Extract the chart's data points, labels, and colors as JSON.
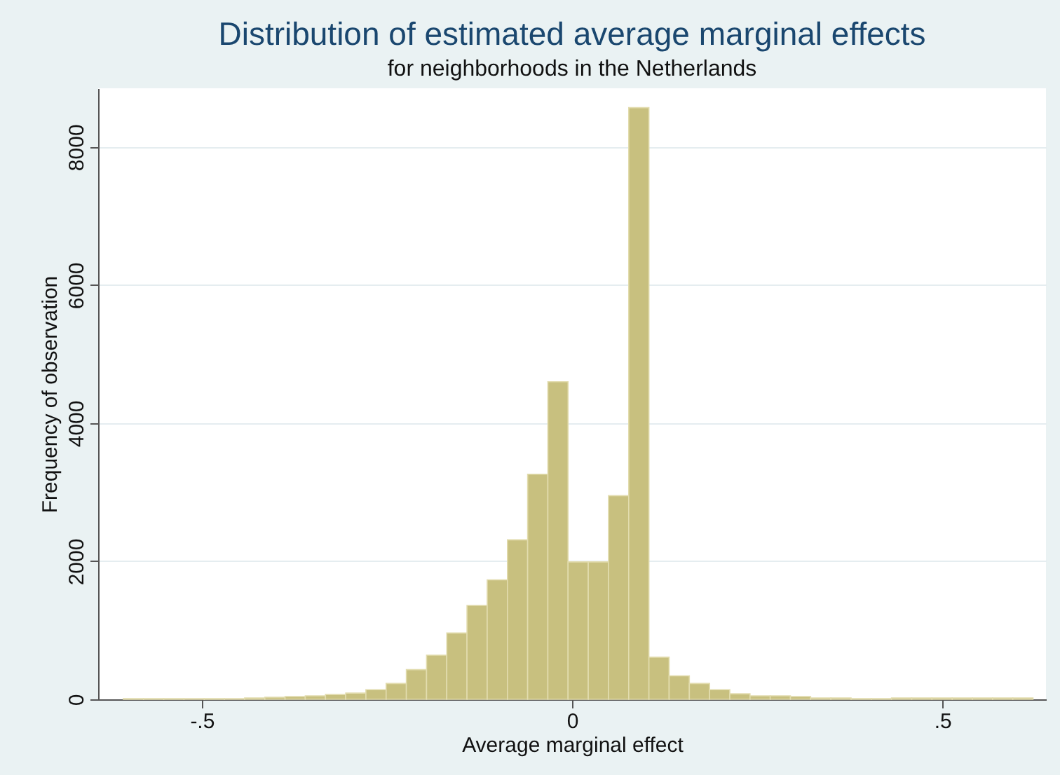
{
  "chart_data": {
    "type": "histogram",
    "title": "Distribution of estimated average marginal effects",
    "subtitle": "for neighborhoods in the Netherlands",
    "xlabel": "Average marginal effect",
    "ylabel": "Frequency of observation",
    "bins": [
      -0.606,
      -0.5787,
      -0.5514,
      -0.5241,
      -0.4968,
      -0.4695,
      -0.4422,
      -0.4149,
      -0.3876,
      -0.3603,
      -0.333,
      -0.3057,
      -0.2784,
      -0.2511,
      -0.2238,
      -0.1965,
      -0.1692,
      -0.1419,
      -0.1146,
      -0.0873,
      -0.06,
      -0.0327,
      -0.0054,
      0.0219,
      0.0492,
      0.0765,
      0.1038,
      0.1311,
      0.1584,
      0.1857,
      0.213,
      0.2403,
      0.2676,
      0.2949,
      0.3222,
      0.3495,
      0.3768,
      0.4041,
      0.4314,
      0.4587,
      0.486,
      0.5133,
      0.5406,
      0.5679,
      0.5952,
      0.6225
    ],
    "values": [
      10,
      10,
      10,
      10,
      10,
      10,
      20,
      30,
      40,
      50,
      70,
      90,
      140,
      230,
      430,
      640,
      960,
      1360,
      1730,
      2310,
      3260,
      4600,
      1990,
      1990,
      2950,
      8570,
      610,
      340,
      230,
      140,
      80,
      50,
      50,
      40,
      20,
      20,
      10,
      10,
      20,
      20,
      20,
      20,
      20,
      20,
      20
    ],
    "color": "#c8c07f",
    "xlim": [
      -0.64,
      0.64
    ],
    "xticks": [
      {
        "value": -0.5,
        "label": "-.5"
      },
      0,
      {
        "value": 0.5,
        "label": ".5"
      }
    ],
    "ylim": [
      0,
      8850
    ],
    "yticks": [
      0,
      2000,
      4000,
      6000,
      8000
    ],
    "grid": "y"
  }
}
